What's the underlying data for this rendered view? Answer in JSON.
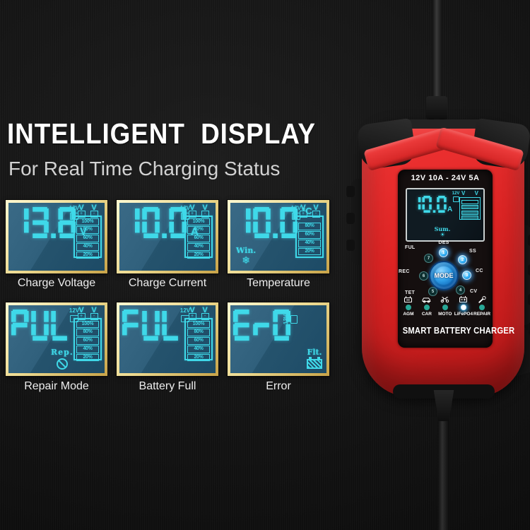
{
  "colors": {
    "lcd_cyan": "#3fd9e9",
    "panel_border_gold": "#ecd98f",
    "charger_red": "#df2424",
    "active_blue": "#35b2f5",
    "teal_dot": "#28a796",
    "lcd_bg_light": "#3a6a86",
    "lcd_bg_dark": "#1d4b66"
  },
  "header": {
    "title": "INTELLIGENT  DISPLAY",
    "subtitle": "For Real Time Charging Status"
  },
  "panels": [
    {
      "value": "13.8",
      "unit": "V",
      "corner": "12V",
      "clamps": [
        "+",
        "-"
      ],
      "gauge": [
        "100%",
        "80%",
        "60%",
        "40%",
        "20%"
      ],
      "extra_text": "",
      "label": "Charge Voltage"
    },
    {
      "value": "10.0",
      "unit": "A",
      "corner": "12V",
      "clamps": [
        "+",
        "-"
      ],
      "gauge": [
        "100%",
        "80%",
        "60%",
        "40%",
        "20%"
      ],
      "extra_text": "",
      "label": "Charge Current"
    },
    {
      "value": "10.0",
      "unit": "°C",
      "corner": "12V",
      "clamps": [
        "+",
        "-"
      ],
      "gauge": [
        "80%",
        "60%",
        "40%",
        "20%"
      ],
      "extra_text": "Win.",
      "label": "Temperature"
    },
    {
      "value": "PUL",
      "unit": "",
      "corner": "12V",
      "clamps": [
        "+",
        "-"
      ],
      "gauge": [
        "100%",
        "80%",
        "60%",
        "40%",
        "20%"
      ],
      "extra_text": "Rep.",
      "label": "Repair Mode"
    },
    {
      "value": "FUL",
      "unit": "",
      "corner": "12V",
      "clamps": [
        "+",
        "-"
      ],
      "gauge": [
        "100%",
        "80%",
        "60%",
        "40%",
        "20%"
      ],
      "extra_text": "",
      "label": "Battery Full"
    },
    {
      "value": "Er0",
      "unit": "",
      "corner": "12V",
      "clamps": [],
      "gauge": [],
      "extra_text": "Flt.",
      "label": "Error"
    }
  ],
  "charger": {
    "rating": "12V 10A - 24V 5A",
    "lcd": {
      "value": "10.0",
      "unit": "A",
      "corner": "12V",
      "sun_label": "Sum."
    },
    "dial": {
      "center_label": "MODE",
      "positions": [
        {
          "num": "1",
          "label": "DES",
          "active": true
        },
        {
          "num": "2",
          "label": "SS",
          "active": true
        },
        {
          "num": "3",
          "label": "CC",
          "active": true
        },
        {
          "num": "4",
          "label": "CV",
          "active": false
        },
        {
          "num": "5",
          "label": "TET",
          "active": false
        },
        {
          "num": "6",
          "label": "REC",
          "active": false
        },
        {
          "num": "7",
          "label": "FUL",
          "active": false
        }
      ]
    },
    "modes": [
      {
        "label": "AGM",
        "active": false
      },
      {
        "label": "CAR",
        "active": false
      },
      {
        "label": "MOTO",
        "active": false
      },
      {
        "label": "LiFePO4",
        "active": true
      },
      {
        "label": "REPAIR",
        "active": false
      }
    ],
    "product_name": "SMART BATTERY CHARGER"
  }
}
